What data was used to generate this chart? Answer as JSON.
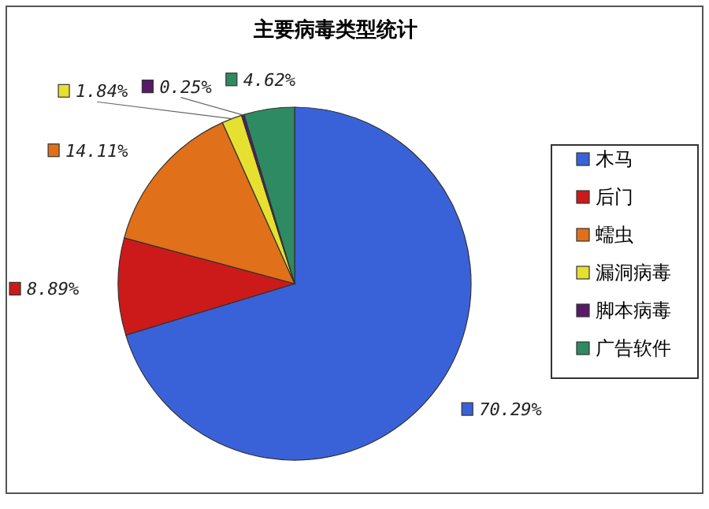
{
  "chart_data": {
    "type": "pie",
    "title": "主要病毒类型统计",
    "categories": [
      "木马",
      "后门",
      "蠕虫",
      "漏洞病毒",
      "脚本病毒",
      "广告软件"
    ],
    "values": [
      70.29,
      8.89,
      14.11,
      1.84,
      0.25,
      4.62
    ],
    "colors": [
      "#3a62d8",
      "#cc1a1a",
      "#e0701a",
      "#e6e030",
      "#5a1a6a",
      "#2e8a62"
    ],
    "value_labels": [
      "70.29%",
      "8.89%",
      "14.11%",
      "1.84%",
      "0.25%",
      "4.62%"
    ],
    "legend": "right"
  }
}
